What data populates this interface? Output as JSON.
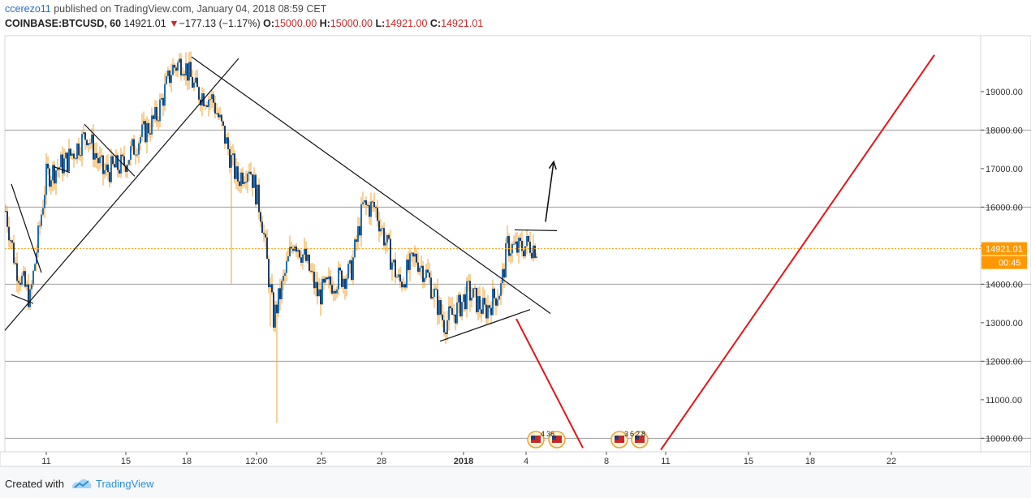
{
  "header": {
    "username": "ccerezo11",
    "published_text": " published on TradingView.com, January 04, 2018 08:59 CET"
  },
  "ohlc": {
    "symbol": "COINBASE:BTCUSD, 60",
    "last": "14921.01",
    "change": "−177.13 (−1.17%)",
    "open_label": "O:",
    "open": "15000.00",
    "high_label": "H:",
    "high": "15000.00",
    "low_label": "L:",
    "low": "14921.00",
    "close_label": "C:",
    "close": "14921.01"
  },
  "price_tag": {
    "price": "14921.01",
    "countdown": "00:45",
    "color": "#ff9800"
  },
  "footer": {
    "created_with": "Created with",
    "brand": "TradingView"
  },
  "events": [
    {
      "labels": [
        "4",
        "36"
      ]
    },
    {
      "labels": [
        "3",
        "6",
        "2",
        "8"
      ]
    }
  ],
  "colors": {
    "up": "#1e6fb8",
    "down": "#1e3d66",
    "wick": "#f0a030",
    "red_line": "#e3151a",
    "grid": "#9e9e9e"
  },
  "chart_data": {
    "type": "candlestick",
    "title": "",
    "xlabel": "",
    "ylabel": "",
    "ylim": [
      9650,
      20450
    ],
    "y_ticks": [
      10000,
      11000,
      12000,
      13000,
      14000,
      15000,
      16000,
      17000,
      18000,
      19000
    ],
    "y_tick_labels": [
      "10000.00",
      "11000.00",
      "12000.00",
      "13000.00",
      "14000.00",
      "15000.00",
      "16000.00",
      "17000.00",
      "18000.00",
      "19000.00"
    ],
    "x_tick_labels": [
      "11",
      "15",
      "18",
      "12:00",
      "25",
      "28",
      "2018",
      "4",
      "8",
      "11",
      "15",
      "18",
      "22"
    ],
    "horizontal_levels": [
      10000,
      12000,
      14000,
      16000,
      18000
    ],
    "last_price": 14921.01,
    "close_path": [
      {
        "t": 0,
        "p": 15900
      },
      {
        "t": 12,
        "p": 14500
      },
      {
        "t": 30,
        "p": 13600
      },
      {
        "t": 50,
        "p": 16800
      },
      {
        "t": 75,
        "p": 17200
      },
      {
        "t": 100,
        "p": 17900
      },
      {
        "t": 120,
        "p": 16900
      },
      {
        "t": 145,
        "p": 17100
      },
      {
        "t": 165,
        "p": 17800
      },
      {
        "t": 185,
        "p": 18300
      },
      {
        "t": 205,
        "p": 19600
      },
      {
        "t": 218,
        "p": 19800
      },
      {
        "t": 235,
        "p": 19000
      },
      {
        "t": 255,
        "p": 18800
      },
      {
        "t": 270,
        "p": 17800
      },
      {
        "t": 285,
        "p": 16700
      },
      {
        "t": 300,
        "p": 17100
      },
      {
        "t": 315,
        "p": 15800
      },
      {
        "t": 330,
        "p": 13100
      },
      {
        "t": 340,
        "p": 13900
      },
      {
        "t": 355,
        "p": 15200
      },
      {
        "t": 370,
        "p": 14600
      },
      {
        "t": 385,
        "p": 13700
      },
      {
        "t": 405,
        "p": 14100
      },
      {
        "t": 425,
        "p": 14300
      },
      {
        "t": 440,
        "p": 16000
      },
      {
        "t": 455,
        "p": 16000
      },
      {
        "t": 465,
        "p": 15300
      },
      {
        "t": 485,
        "p": 14000
      },
      {
        "t": 505,
        "p": 14700
      },
      {
        "t": 520,
        "p": 14200
      },
      {
        "t": 540,
        "p": 13000
      },
      {
        "t": 555,
        "p": 13300
      },
      {
        "t": 570,
        "p": 13800
      },
      {
        "t": 590,
        "p": 13300
      },
      {
        "t": 610,
        "p": 13900
      },
      {
        "t": 618,
        "p": 15000
      },
      {
        "t": 630,
        "p": 14900
      },
      {
        "t": 645,
        "p": 15050
      },
      {
        "t": 655,
        "p": 14921
      }
    ],
    "trend_lines": [
      {
        "points": [
          [
            0,
            12800
          ],
          [
            288,
            19860
          ]
        ]
      },
      {
        "points": [
          [
            230,
            19900
          ],
          [
            672,
            13240
          ]
        ]
      },
      {
        "points": [
          [
            8,
            16600
          ],
          [
            45,
            14300
          ]
        ]
      },
      {
        "points": [
          [
            8,
            13730
          ],
          [
            35,
            13500
          ]
        ]
      },
      {
        "points": [
          [
            98,
            18150
          ],
          [
            160,
            16800
          ]
        ]
      },
      {
        "points": [
          [
            60,
            17050
          ],
          [
            80,
            16900
          ]
        ]
      },
      {
        "points": [
          [
            536,
            12520
          ],
          [
            647,
            13340
          ]
        ]
      },
      {
        "points": [
          [
            628,
            15410
          ],
          [
            680,
            15390
          ]
        ]
      }
    ],
    "arrows": [
      {
        "points": [
          [
            666,
            15620
          ],
          [
            676,
            17180
          ]
        ]
      }
    ],
    "red_lines": [
      {
        "points": [
          [
            630,
            13100
          ],
          [
            712,
            9750
          ]
        ]
      },
      {
        "points": [
          [
            808,
            9700
          ],
          [
            1145,
            19950
          ]
        ]
      }
    ]
  }
}
